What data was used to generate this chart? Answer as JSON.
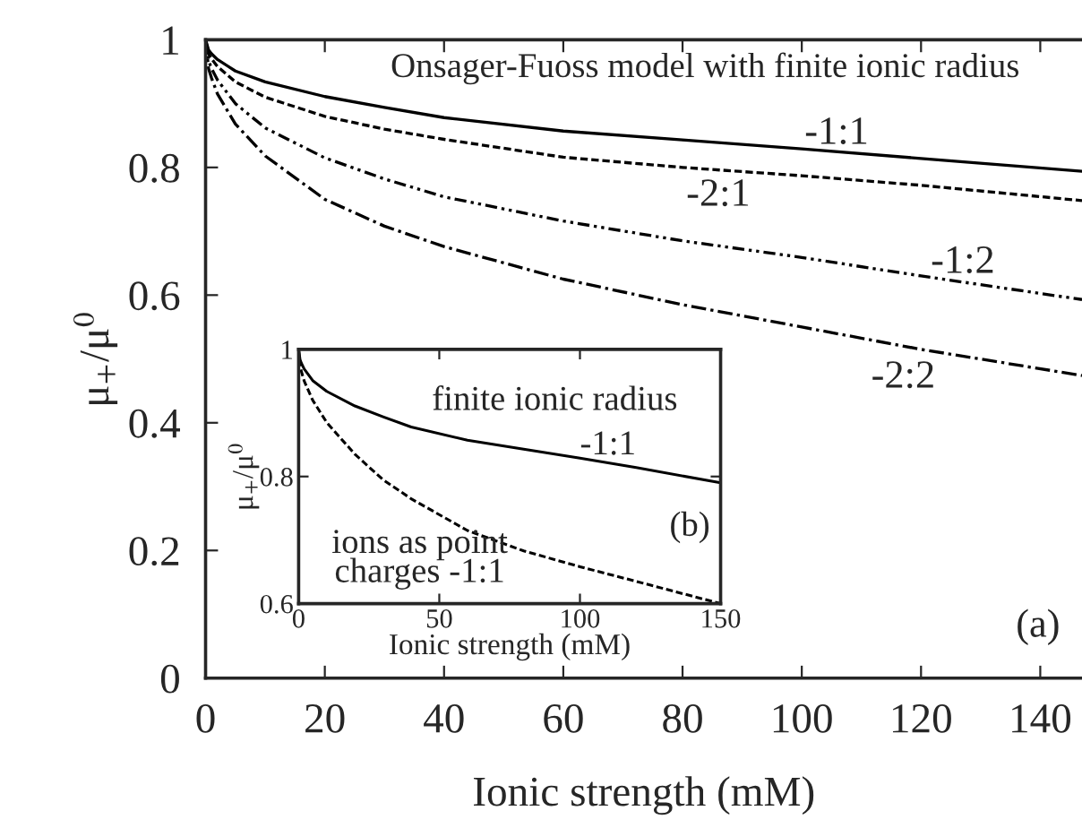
{
  "chart_data": [
    {
      "type": "line",
      "xlabel": "Ionic strength (mM)",
      "ylabel": "μ$_{+}$/μ$^{0}$",
      "xlim": [
        0,
        147
      ],
      "ylim": [
        0,
        1
      ],
      "xticks": [
        0,
        20,
        40,
        60,
        80,
        100,
        120,
        140
      ],
      "yticks": [
        0,
        0.2,
        0.4,
        0.6,
        0.8,
        1
      ],
      "grid": false,
      "legend": false,
      "x": [
        0,
        0.5,
        1,
        2,
        5,
        10,
        20,
        30,
        40,
        60,
        80,
        100,
        120,
        147
      ],
      "series": [
        {
          "color": "#000000",
          "line_style": "solid",
          "values": [
            1,
            0.984,
            0.978,
            0.969,
            0.951,
            0.934,
            0.911,
            0.894,
            0.878,
            0.857,
            0.843,
            0.829,
            0.814,
            0.794
          ]
        },
        {
          "color": "#000000",
          "line_style": "dashed",
          "values": [
            1,
            0.978,
            0.97,
            0.958,
            0.934,
            0.91,
            0.88,
            0.86,
            0.844,
            0.816,
            0.8,
            0.787,
            0.772,
            0.748
          ]
        },
        {
          "color": "#000000",
          "line_style": "dashdotdot",
          "values": [
            1,
            0.967,
            0.955,
            0.937,
            0.9,
            0.862,
            0.815,
            0.782,
            0.754,
            0.716,
            0.685,
            0.659,
            0.63,
            0.593
          ]
        },
        {
          "color": "#000000",
          "line_style": "dashdot",
          "values": [
            1,
            0.955,
            0.94,
            0.915,
            0.868,
            0.818,
            0.75,
            0.708,
            0.676,
            0.625,
            0.585,
            0.55,
            0.515,
            0.474
          ]
        }
      ],
      "annotations": [
        "Onsager-Fuoss model with finite ionic radius",
        "-1:1",
        "-2:1",
        "-1:2",
        "-2:2",
        "(a)"
      ]
    },
    {
      "type": "line",
      "xlabel": "Ionic strength (mM)",
      "ylabel": "μ$_{+}$/μ$^{0}$",
      "xlim": [
        0,
        150
      ],
      "ylim": [
        0.6,
        1
      ],
      "xticks": [
        0,
        50,
        100,
        150
      ],
      "yticks": [
        0.6,
        0.8,
        1
      ],
      "grid": false,
      "legend": false,
      "x": [
        0,
        0.5,
        1,
        2,
        5,
        10,
        20,
        30,
        40,
        60,
        80,
        100,
        120,
        150
      ],
      "series": [
        {
          "color": "#000000",
          "line_style": "solid",
          "values": [
            1,
            0.984,
            0.978,
            0.969,
            0.951,
            0.934,
            0.911,
            0.894,
            0.878,
            0.857,
            0.843,
            0.829,
            0.814,
            0.79
          ]
        },
        {
          "color": "#000000",
          "line_style": "dashed",
          "values": [
            1,
            0.975,
            0.965,
            0.95,
            0.92,
            0.885,
            0.835,
            0.795,
            0.765,
            0.715,
            0.683,
            0.658,
            0.635,
            0.6
          ]
        }
      ],
      "annotations": [
        "finite ionic radius",
        "-1:1",
        "ions as point\ncharges -1:1",
        "(b)"
      ]
    }
  ]
}
